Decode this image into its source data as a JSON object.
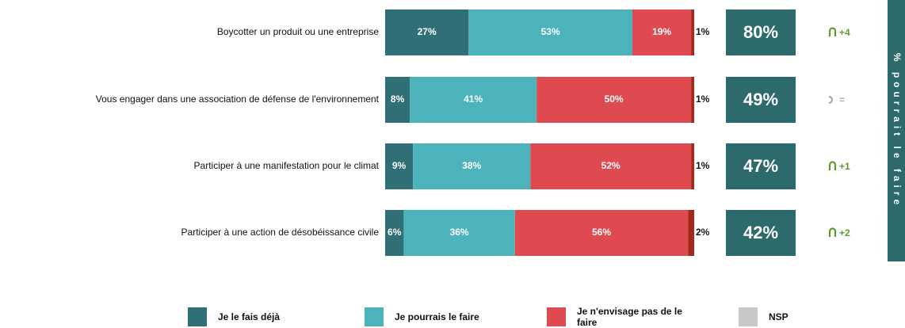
{
  "chart_data": {
    "type": "stacked_barh",
    "categories": [
      "Boycotter un produit ou une entreprise",
      "Vous engager dans une association de défense de l'environnement",
      "Participer à une manifestation pour le climat",
      "Participer à une action de désobéissance civile"
    ],
    "xlim": [
      0,
      100
    ],
    "series": [
      {
        "name": "Je le fais déjà",
        "color": "#2f6f75",
        "values": [
          27,
          8,
          9,
          6
        ],
        "value_labels": [
          "27%",
          "8%",
          "9%",
          "6%"
        ]
      },
      {
        "name": "Je pourrais le faire",
        "color": "#4cb3bc",
        "values": [
          53,
          41,
          38,
          36
        ],
        "value_labels": [
          "53%",
          "41%",
          "38%",
          "36%"
        ]
      },
      {
        "name": "Je n'envisage pas de le faire",
        "color": "#de4a50",
        "values": [
          19,
          50,
          52,
          56
        ],
        "value_labels": [
          "19%",
          "50%",
          "52%",
          "56%"
        ]
      },
      {
        "name": "NSP",
        "color": "#c8c8c8",
        "bar_color": "#a3291f",
        "values": [
          1,
          1,
          1,
          2
        ],
        "value_labels": [
          "1%",
          "1%",
          "1%",
          "2%"
        ]
      }
    ],
    "totals": {
      "title": "% pourrait le faire",
      "color": "#2d6a6c",
      "values": [
        80,
        49,
        47,
        42
      ],
      "value_labels": [
        "80%",
        "49%",
        "47%",
        "42%"
      ]
    },
    "change": {
      "values": [
        4,
        0,
        1,
        2
      ],
      "value_labels": [
        "+4",
        "=",
        "+1",
        "+2"
      ],
      "color": "#5f9a2b",
      "neutral_color": "#aaaaaa"
    }
  }
}
